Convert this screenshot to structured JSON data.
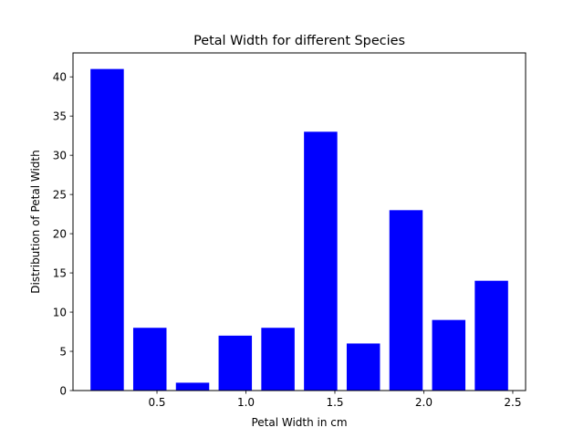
{
  "chart_data": {
    "type": "bar",
    "title": "Petal Width for different Species",
    "xlabel": "Petal Width in cm",
    "ylabel": "Distribution of Petal Width",
    "x": [
      0.22,
      0.46,
      0.7,
      0.94,
      1.18,
      1.42,
      1.66,
      1.9,
      2.14,
      2.38
    ],
    "values": [
      41,
      8,
      1,
      7,
      8,
      33,
      6,
      23,
      9,
      14
    ],
    "bar_width": 0.1872,
    "xlim": [
      0.028,
      2.572
    ],
    "ylim": [
      0,
      43.05
    ],
    "xticks": [
      0.5,
      1.0,
      1.5,
      2.0,
      2.5
    ],
    "xtick_labels": [
      "0.5",
      "1.0",
      "1.5",
      "2.0",
      "2.5"
    ],
    "yticks": [
      0,
      5,
      10,
      15,
      20,
      25,
      30,
      35,
      40
    ],
    "ytick_labels": [
      "0",
      "5",
      "10",
      "15",
      "20",
      "25",
      "30",
      "35",
      "40"
    ],
    "bar_color": "#0000ff",
    "grid": false,
    "legend": false
  }
}
